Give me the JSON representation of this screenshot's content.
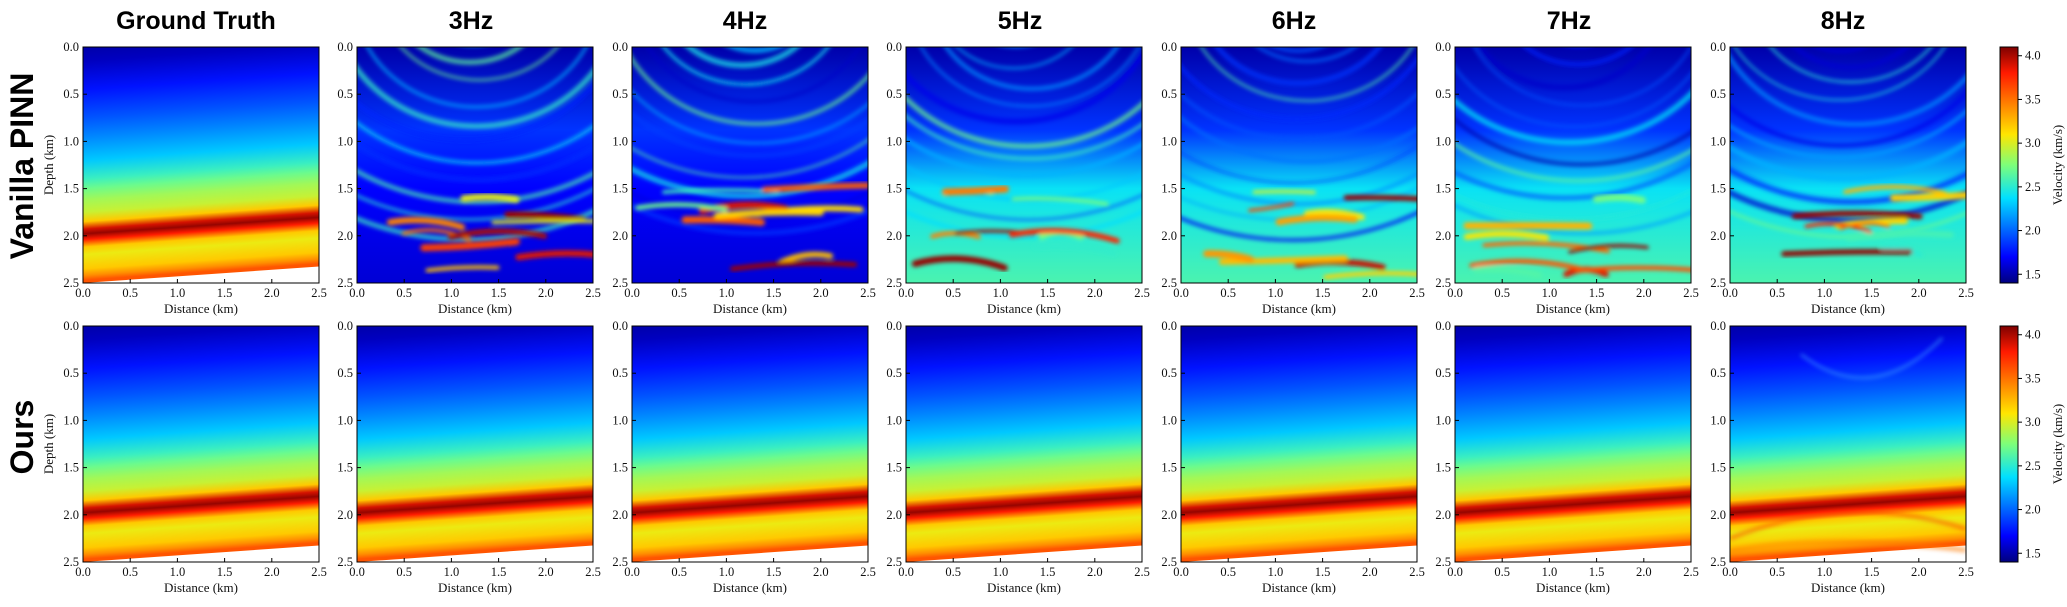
{
  "figure": {
    "columns": [
      "Ground Truth",
      "3Hz",
      "4Hz",
      "5Hz",
      "6Hz",
      "7Hz",
      "8Hz"
    ],
    "rows": [
      "Vanilla PINN",
      "Ours"
    ]
  },
  "chart_data": {
    "type": "heatmap",
    "xlabel": "Distance (km)",
    "ylabel": "Depth (km)",
    "xlim": [
      0.0,
      2.5
    ],
    "ylim": [
      2.5,
      0.0
    ],
    "xticks": [
      "0.0",
      "0.5",
      "1.0",
      "1.5",
      "2.0",
      "2.5"
    ],
    "yticks": [
      "0.0",
      "0.5",
      "1.0",
      "1.5",
      "2.0",
      "2.5"
    ],
    "colormap": "jet",
    "colorbar": {
      "label": "Velocity (km/s)",
      "range": [
        1.4,
        4.1
      ],
      "ticks": [
        "1.5",
        "2.0",
        "2.5",
        "3.0",
        "3.5",
        "4.0"
      ]
    },
    "panels_per_row": 7,
    "n_rows": 2
  }
}
